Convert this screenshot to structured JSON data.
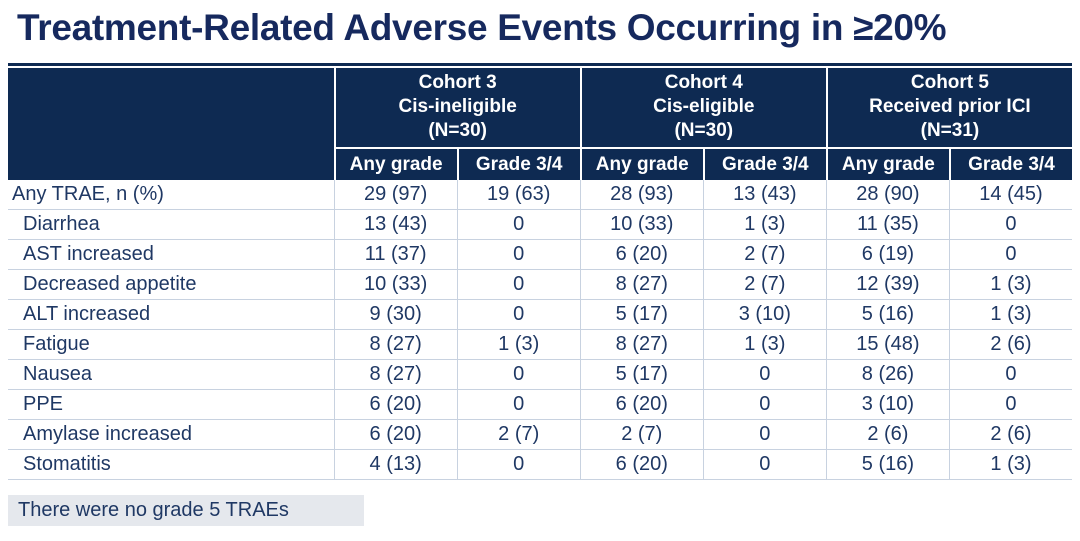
{
  "title": "Treatment-Related Adverse Events Occurring in ≥20%",
  "footnote": "There were no grade 5 TRAEs",
  "chart_data": {
    "type": "table",
    "title": "Treatment-Related Adverse Events Occurring in ≥20%",
    "unit_note": "values are n (%)",
    "cohorts": [
      {
        "name": "Cohort 3",
        "subtitle": "Cis-ineligible",
        "n": "(N=30)"
      },
      {
        "name": "Cohort 4",
        "subtitle": "Cis-eligible",
        "n": "(N=30)"
      },
      {
        "name": "Cohort 5",
        "subtitle": "Received prior ICI",
        "n": "(N=31)"
      }
    ],
    "grade_columns": [
      "Any grade",
      "Grade 3/4"
    ],
    "rows": [
      {
        "label": "Any TRAE, n (%)",
        "indent": false,
        "values": [
          "29 (97)",
          "19 (63)",
          "28 (93)",
          "13 (43)",
          "28 (90)",
          "14 (45)"
        ]
      },
      {
        "label": "Diarrhea",
        "indent": true,
        "values": [
          "13 (43)",
          "0",
          "10 (33)",
          "1 (3)",
          "11 (35)",
          "0"
        ]
      },
      {
        "label": "AST increased",
        "indent": true,
        "values": [
          "11 (37)",
          "0",
          "6 (20)",
          "2 (7)",
          "6 (19)",
          "0"
        ]
      },
      {
        "label": "Decreased appetite",
        "indent": true,
        "values": [
          "10 (33)",
          "0",
          "8 (27)",
          "2 (7)",
          "12 (39)",
          "1 (3)"
        ]
      },
      {
        "label": "ALT increased",
        "indent": true,
        "values": [
          "9 (30)",
          "0",
          "5 (17)",
          "3 (10)",
          "5 (16)",
          "1 (3)"
        ]
      },
      {
        "label": "Fatigue",
        "indent": true,
        "values": [
          "8 (27)",
          "1 (3)",
          "8 (27)",
          "1 (3)",
          "15 (48)",
          "2 (6)"
        ]
      },
      {
        "label": "Nausea",
        "indent": true,
        "values": [
          "8 (27)",
          "0",
          "5 (17)",
          "0",
          "8 (26)",
          "0"
        ]
      },
      {
        "label": "PPE",
        "indent": true,
        "values": [
          "6 (20)",
          "0",
          "6 (20)",
          "0",
          "3 (10)",
          "0"
        ]
      },
      {
        "label": "Amylase increased",
        "indent": true,
        "values": [
          "6 (20)",
          "2 (7)",
          "2 (7)",
          "0",
          "2 (6)",
          "2 (6)"
        ]
      },
      {
        "label": "Stomatitis",
        "indent": true,
        "values": [
          "4 (13)",
          "0",
          "6 (20)",
          "0",
          "5 (16)",
          "1 (3)"
        ]
      }
    ],
    "footnote": "There were no grade 5 TRAEs"
  },
  "colors": {
    "header_bg": "#0E2A52",
    "title_text": "#16295E",
    "body_text": "#1F3864",
    "grid_line": "#C8D2E0",
    "footnote_bg": "#E5E8ED"
  }
}
